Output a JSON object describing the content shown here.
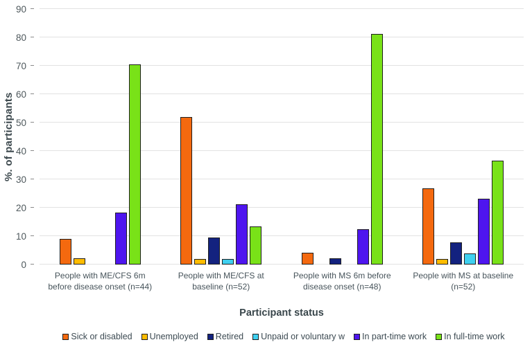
{
  "chart_data": {
    "type": "bar",
    "title": "",
    "xlabel": "Participant status",
    "ylabel": "%. of participants",
    "ylim": [
      0,
      90
    ],
    "yticks": [
      0,
      10,
      20,
      30,
      40,
      50,
      60,
      70,
      80,
      90
    ],
    "grid": true,
    "legend_position": "bottom",
    "categories": [
      "People with ME/CFS 6m before disease onset (n=44)",
      "People with ME/CFS at baseline (n=52)",
      "People with MS 6m before disease onset (n=48)",
      "People with MS at baseline (n=52)"
    ],
    "series": [
      {
        "name": "Sick or disabled",
        "color": "#F4690F",
        "values": [
          9.1,
          51.9,
          4.2,
          26.9
        ]
      },
      {
        "name": "Unemployed",
        "color": "#FFBC00",
        "values": [
          2.3,
          1.9,
          0,
          1.9
        ]
      },
      {
        "name": "Retired",
        "color": "#13227F",
        "values": [
          0,
          9.6,
          2.1,
          7.7
        ]
      },
      {
        "name": "Unpaid or voluntary w",
        "color": "#3FD0F0",
        "values": [
          0,
          1.9,
          0,
          3.8
        ]
      },
      {
        "name": "In part-time work",
        "color": "#4E15EF",
        "values": [
          18.2,
          21.2,
          12.5,
          23.1
        ]
      },
      {
        "name": "In full-time work",
        "color": "#79E218",
        "values": [
          70.5,
          13.5,
          81.3,
          36.5
        ]
      }
    ]
  },
  "colors": {
    "grid": "#E2E2E2",
    "bar_border": "#1e1e1e",
    "text": "#46535A",
    "axis_title": "#39464B"
  }
}
